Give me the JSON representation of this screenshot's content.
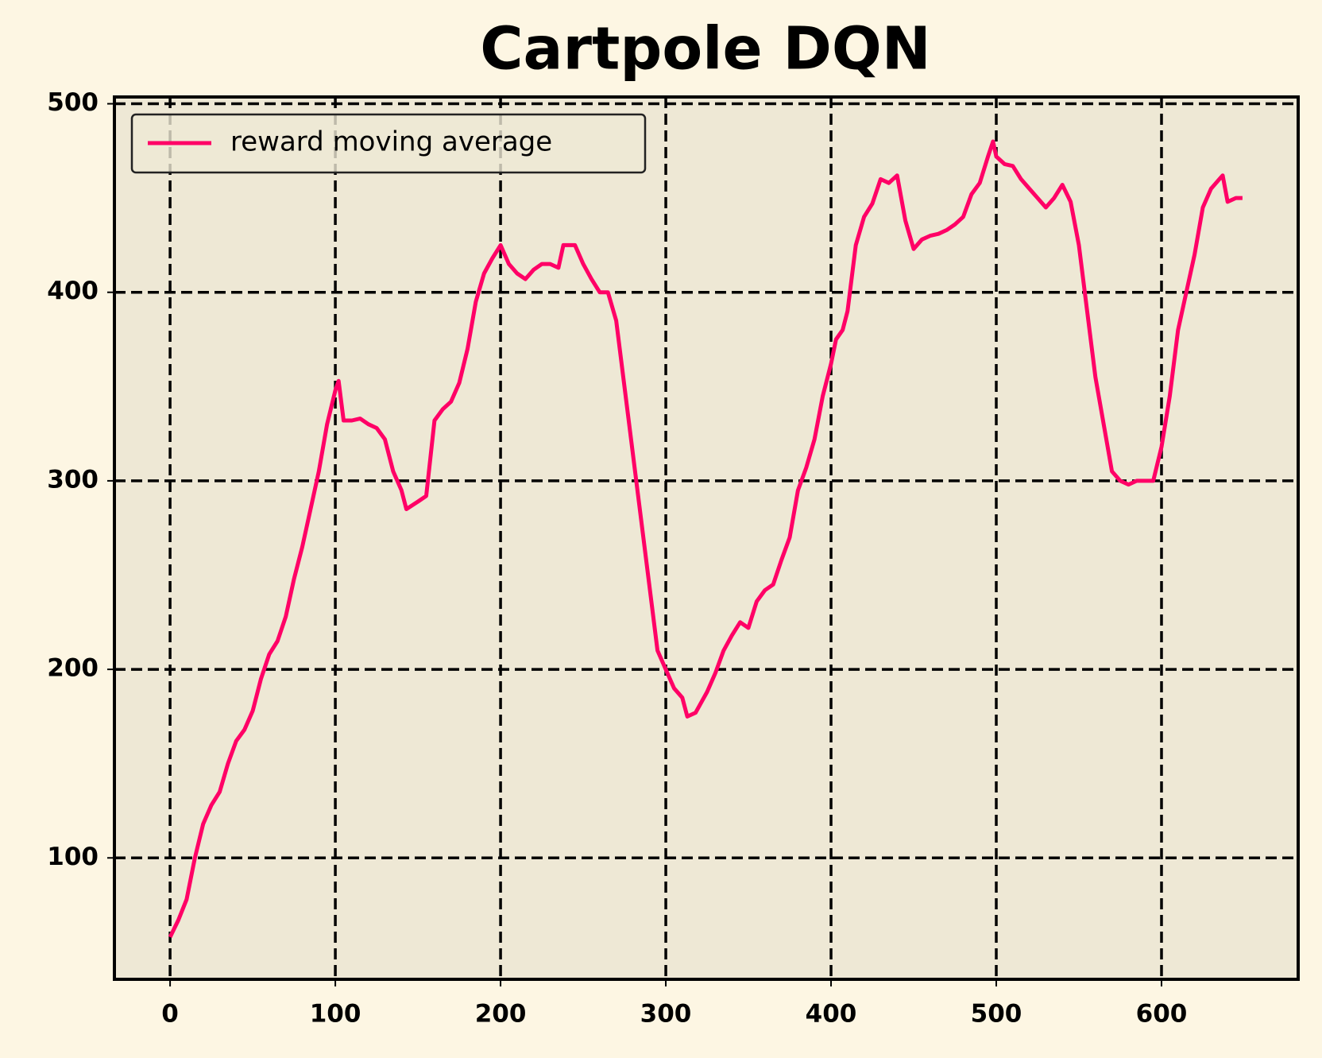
{
  "chart_data": {
    "type": "line",
    "title": "Cartpole DQN",
    "x": [
      0,
      5,
      10,
      15,
      20,
      25,
      30,
      35,
      40,
      45,
      50,
      55,
      60,
      65,
      70,
      75,
      80,
      85,
      90,
      95,
      100,
      102,
      105,
      110,
      115,
      120,
      125,
      130,
      135,
      140,
      143,
      150,
      155,
      160,
      165,
      170,
      175,
      180,
      185,
      190,
      195,
      200,
      205,
      210,
      215,
      220,
      225,
      230,
      235,
      238,
      245,
      250,
      255,
      260,
      265,
      270,
      275,
      280,
      285,
      290,
      295,
      300,
      305,
      310,
      313,
      318,
      325,
      330,
      335,
      340,
      345,
      350,
      355,
      360,
      365,
      370,
      375,
      380,
      385,
      390,
      395,
      400,
      403,
      407,
      410,
      415,
      420,
      425,
      430,
      435,
      440,
      445,
      450,
      455,
      460,
      465,
      470,
      475,
      480,
      485,
      490,
      495,
      498,
      500,
      505,
      510,
      515,
      520,
      525,
      530,
      535,
      540,
      545,
      550,
      555,
      560,
      565,
      570,
      575,
      580,
      585,
      590,
      595,
      600,
      605,
      610,
      615,
      620,
      625,
      630,
      635,
      637,
      640,
      645,
      649
    ],
    "series": [
      {
        "name": "reward moving average",
        "color": "#ff0066",
        "values": [
          58,
          67,
          78,
          100,
          118,
          128,
          135,
          150,
          162,
          168,
          178,
          195,
          208,
          215,
          228,
          248,
          265,
          285,
          305,
          330,
          348,
          353,
          332,
          332,
          333,
          330,
          328,
          322,
          305,
          295,
          285,
          289,
          292,
          332,
          338,
          342,
          352,
          370,
          395,
          410,
          418,
          425,
          415,
          410,
          407,
          412,
          415,
          415,
          413,
          425,
          425,
          415,
          407,
          400,
          400,
          385,
          350,
          315,
          280,
          245,
          210,
          200,
          190,
          185,
          175,
          177,
          188,
          198,
          210,
          218,
          225,
          222,
          236,
          242,
          245,
          258,
          270,
          295,
          307,
          322,
          345,
          362,
          375,
          380,
          390,
          425,
          440,
          447,
          460,
          458,
          462,
          438,
          423,
          428,
          430,
          431,
          433,
          436,
          440,
          452,
          458,
          472,
          480,
          472,
          468,
          467,
          460,
          455,
          450,
          445,
          450,
          457,
          448,
          425,
          390,
          355,
          330,
          305,
          300,
          298,
          300,
          300,
          300,
          318,
          345,
          380,
          400,
          420,
          445,
          455,
          460,
          462,
          448,
          450,
          450
        ]
      }
    ],
    "xlim": [
      -33.7,
      682.7
    ],
    "ylim": [
      35.6,
      503.6
    ],
    "xticks": [
      0,
      100,
      200,
      300,
      400,
      500,
      600
    ],
    "yticks": [
      100,
      200,
      300,
      400,
      500
    ],
    "grid": true,
    "legend": "upper left"
  }
}
